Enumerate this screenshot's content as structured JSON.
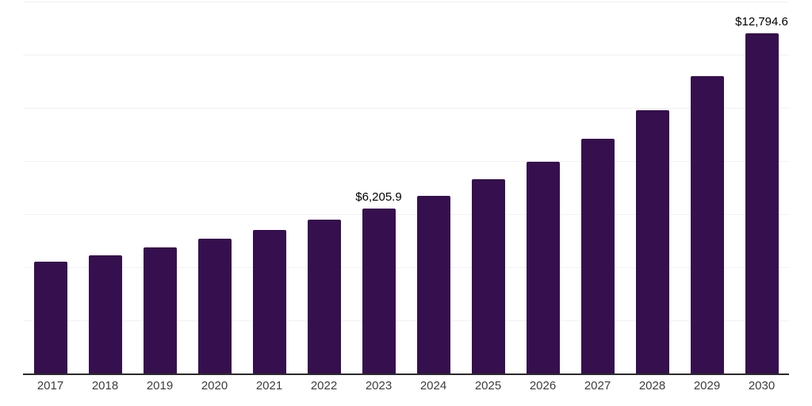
{
  "chart_data": {
    "type": "bar",
    "title": "",
    "xlabel": "",
    "ylabel": "",
    "categories": [
      "2017",
      "2018",
      "2019",
      "2020",
      "2021",
      "2022",
      "2023",
      "2024",
      "2025",
      "2026",
      "2027",
      "2028",
      "2029",
      "2030"
    ],
    "values": [
      4220,
      4458,
      4755,
      5082,
      5409,
      5795,
      6205.9,
      6687,
      7311,
      7965,
      8827,
      9897,
      11204,
      12794.6
    ],
    "data_labels": [
      "",
      "",
      "",
      "",
      "",
      "",
      "$6,205.9",
      "",
      "",
      "",
      "",
      "",
      "",
      "$12,794.6"
    ],
    "ylim": [
      0,
      14000
    ],
    "gridline_interval": 2000,
    "grid": true,
    "legend": false,
    "bar_color": "#36104E",
    "gridline_color": "#f2f2f4",
    "axis_line_color": "#2b2b2b",
    "tick_label_color": "#3d3d3d",
    "data_label_color": "#000000"
  }
}
